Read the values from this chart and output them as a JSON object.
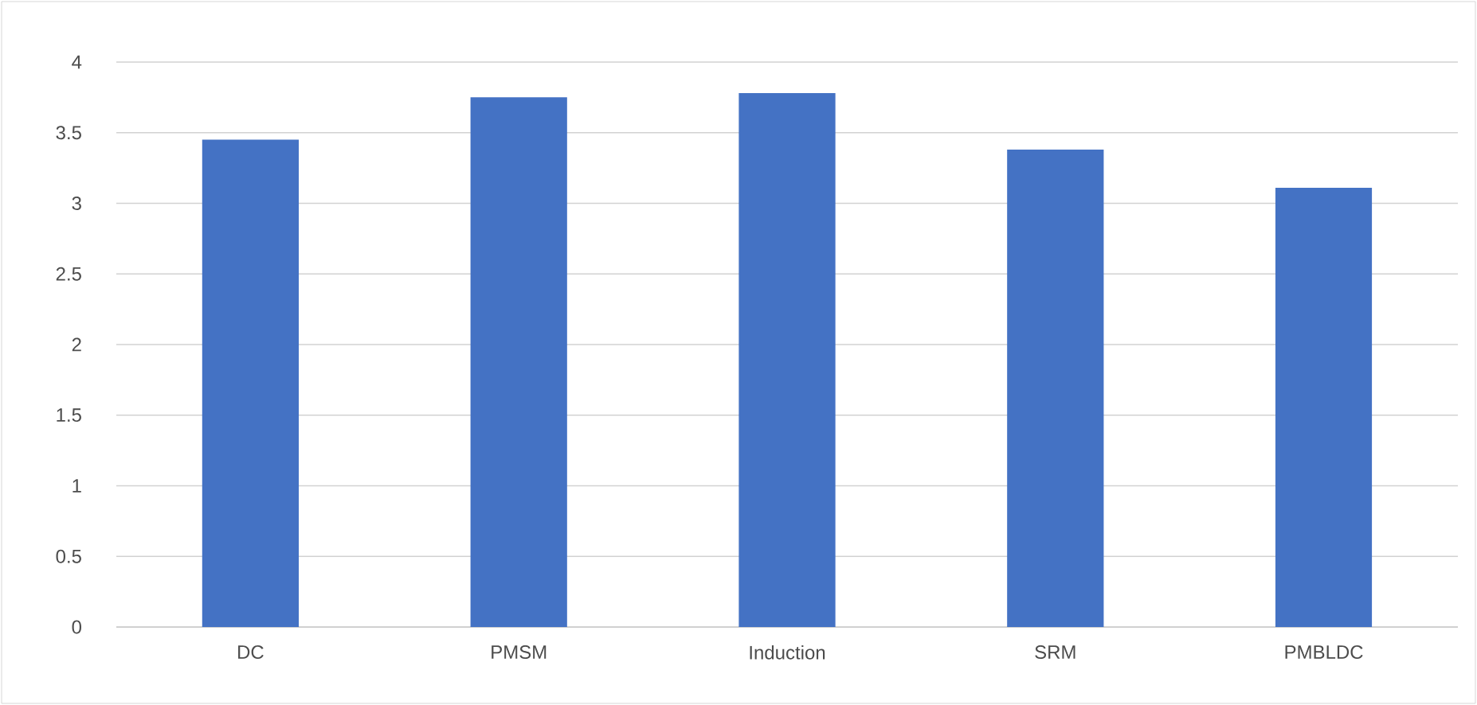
{
  "chart_data": {
    "type": "bar",
    "categories": [
      "DC",
      "PMSM",
      "Induction",
      "SRM",
      "PMBLDC"
    ],
    "values": [
      3.45,
      3.75,
      3.78,
      3.38,
      3.11
    ],
    "color": "#4472c4",
    "ylim": [
      0,
      4
    ],
    "yticks": [
      0,
      0.5,
      1,
      1.5,
      2,
      2.5,
      3,
      3.5,
      4
    ],
    "grid": "y"
  }
}
